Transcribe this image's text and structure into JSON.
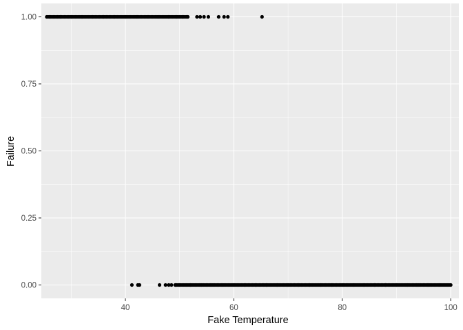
{
  "chart_data": {
    "type": "scatter",
    "title": "",
    "xlabel": "Fake Temperature",
    "ylabel": "Failure",
    "xlim": [
      24.5,
      101.5
    ],
    "ylim": [
      -0.05,
      1.05
    ],
    "x_ticks": [
      40,
      60,
      80,
      100
    ],
    "x_tick_labels": [
      "40",
      "60",
      "80",
      "100"
    ],
    "y_ticks": [
      0,
      0.25,
      0.5,
      0.75,
      1
    ],
    "y_tick_labels": [
      "0.00",
      "0.25",
      "0.50",
      "0.75",
      "1.00"
    ],
    "grid": true,
    "legend": "none",
    "colors": {
      "panel_background": "#ebebeb",
      "grid_major": "#ffffff",
      "points": "#000000"
    },
    "series": [
      {
        "values": [
          {
            "x": 26,
            "y": 1
          },
          {
            "x": 28,
            "y": 1
          },
          {
            "x": 30,
            "y": 1
          },
          {
            "x": 32,
            "y": 1
          },
          {
            "x": 34,
            "y": 1
          },
          {
            "x": 36,
            "y": 1
          },
          {
            "x": 38,
            "y": 1
          },
          {
            "x": 40,
            "y": 1
          },
          {
            "x": 42,
            "y": 1
          },
          {
            "x": 44,
            "y": 1
          },
          {
            "x": 46,
            "y": 1
          },
          {
            "x": 48,
            "y": 1
          },
          {
            "x": 49.5,
            "y": 1
          },
          {
            "x": 50.5,
            "y": 1
          },
          {
            "x": 51.5,
            "y": 1
          },
          {
            "x": 53.2,
            "y": 1
          },
          {
            "x": 53.8,
            "y": 1
          },
          {
            "x": 54.5,
            "y": 1
          },
          {
            "x": 55.3,
            "y": 1
          },
          {
            "x": 57.2,
            "y": 1
          },
          {
            "x": 58.2,
            "y": 1
          },
          {
            "x": 58.9,
            "y": 1
          },
          {
            "x": 65.2,
            "y": 1
          },
          {
            "x": 41.2,
            "y": 0
          },
          {
            "x": 42.3,
            "y": 0
          },
          {
            "x": 42.6,
            "y": 0
          },
          {
            "x": 46.3,
            "y": 0
          },
          {
            "x": 47.4,
            "y": 0
          },
          {
            "x": 48.0,
            "y": 0
          },
          {
            "x": 48.5,
            "y": 0
          },
          {
            "x": 49.2,
            "y": 0
          },
          {
            "x": 50,
            "y": 0
          },
          {
            "x": 52,
            "y": 0
          },
          {
            "x": 54,
            "y": 0
          },
          {
            "x": 56,
            "y": 0
          },
          {
            "x": 58,
            "y": 0
          },
          {
            "x": 60,
            "y": 0
          },
          {
            "x": 62,
            "y": 0
          },
          {
            "x": 64,
            "y": 0
          },
          {
            "x": 66,
            "y": 0
          },
          {
            "x": 68,
            "y": 0
          },
          {
            "x": 70,
            "y": 0
          },
          {
            "x": 72,
            "y": 0
          },
          {
            "x": 74,
            "y": 0
          },
          {
            "x": 76,
            "y": 0
          },
          {
            "x": 78,
            "y": 0
          },
          {
            "x": 80,
            "y": 0
          },
          {
            "x": 82,
            "y": 0
          },
          {
            "x": 84,
            "y": 0
          },
          {
            "x": 86,
            "y": 0
          },
          {
            "x": 88,
            "y": 0
          },
          {
            "x": 90,
            "y": 0
          },
          {
            "x": 92,
            "y": 0
          },
          {
            "x": 94,
            "y": 0
          },
          {
            "x": 96,
            "y": 0
          },
          {
            "x": 98,
            "y": 0
          },
          {
            "x": 100,
            "y": 0
          }
        ],
        "dense_ranges": [
          {
            "y": 1,
            "x_from": 25.5,
            "x_to": 51.5
          },
          {
            "y": 0,
            "x_from": 49.2,
            "x_to": 100
          }
        ]
      }
    ]
  }
}
